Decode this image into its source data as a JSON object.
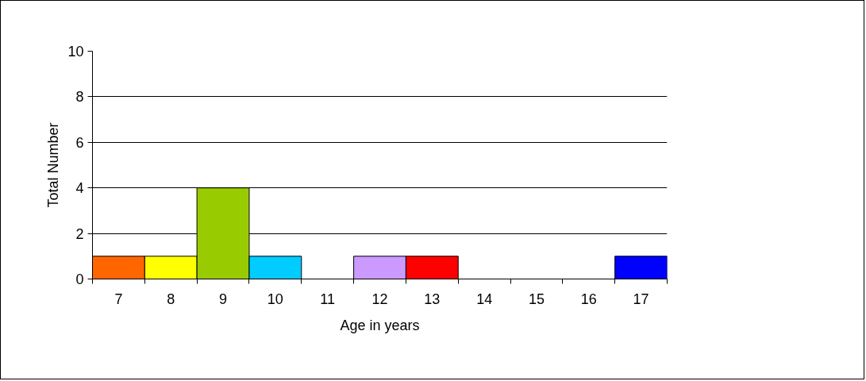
{
  "chart_data": {
    "type": "bar",
    "xlabel": "Age in years",
    "ylabel": "Total Number",
    "categories": [
      "7",
      "8",
      "9",
      "10",
      "11",
      "12",
      "13",
      "14",
      "15",
      "16",
      "17"
    ],
    "values": [
      1,
      1,
      4,
      1,
      0,
      1,
      1,
      0,
      0,
      0,
      1
    ],
    "colors": [
      "#ff6600",
      "#ffff00",
      "#99cc00",
      "#00ccff",
      null,
      "#cc99ff",
      "#ff0000",
      null,
      null,
      null,
      "#0000ff"
    ],
    "ylim": [
      0,
      10
    ],
    "yticks": [
      0,
      2,
      4,
      6,
      8,
      10
    ],
    "grid": "y"
  }
}
